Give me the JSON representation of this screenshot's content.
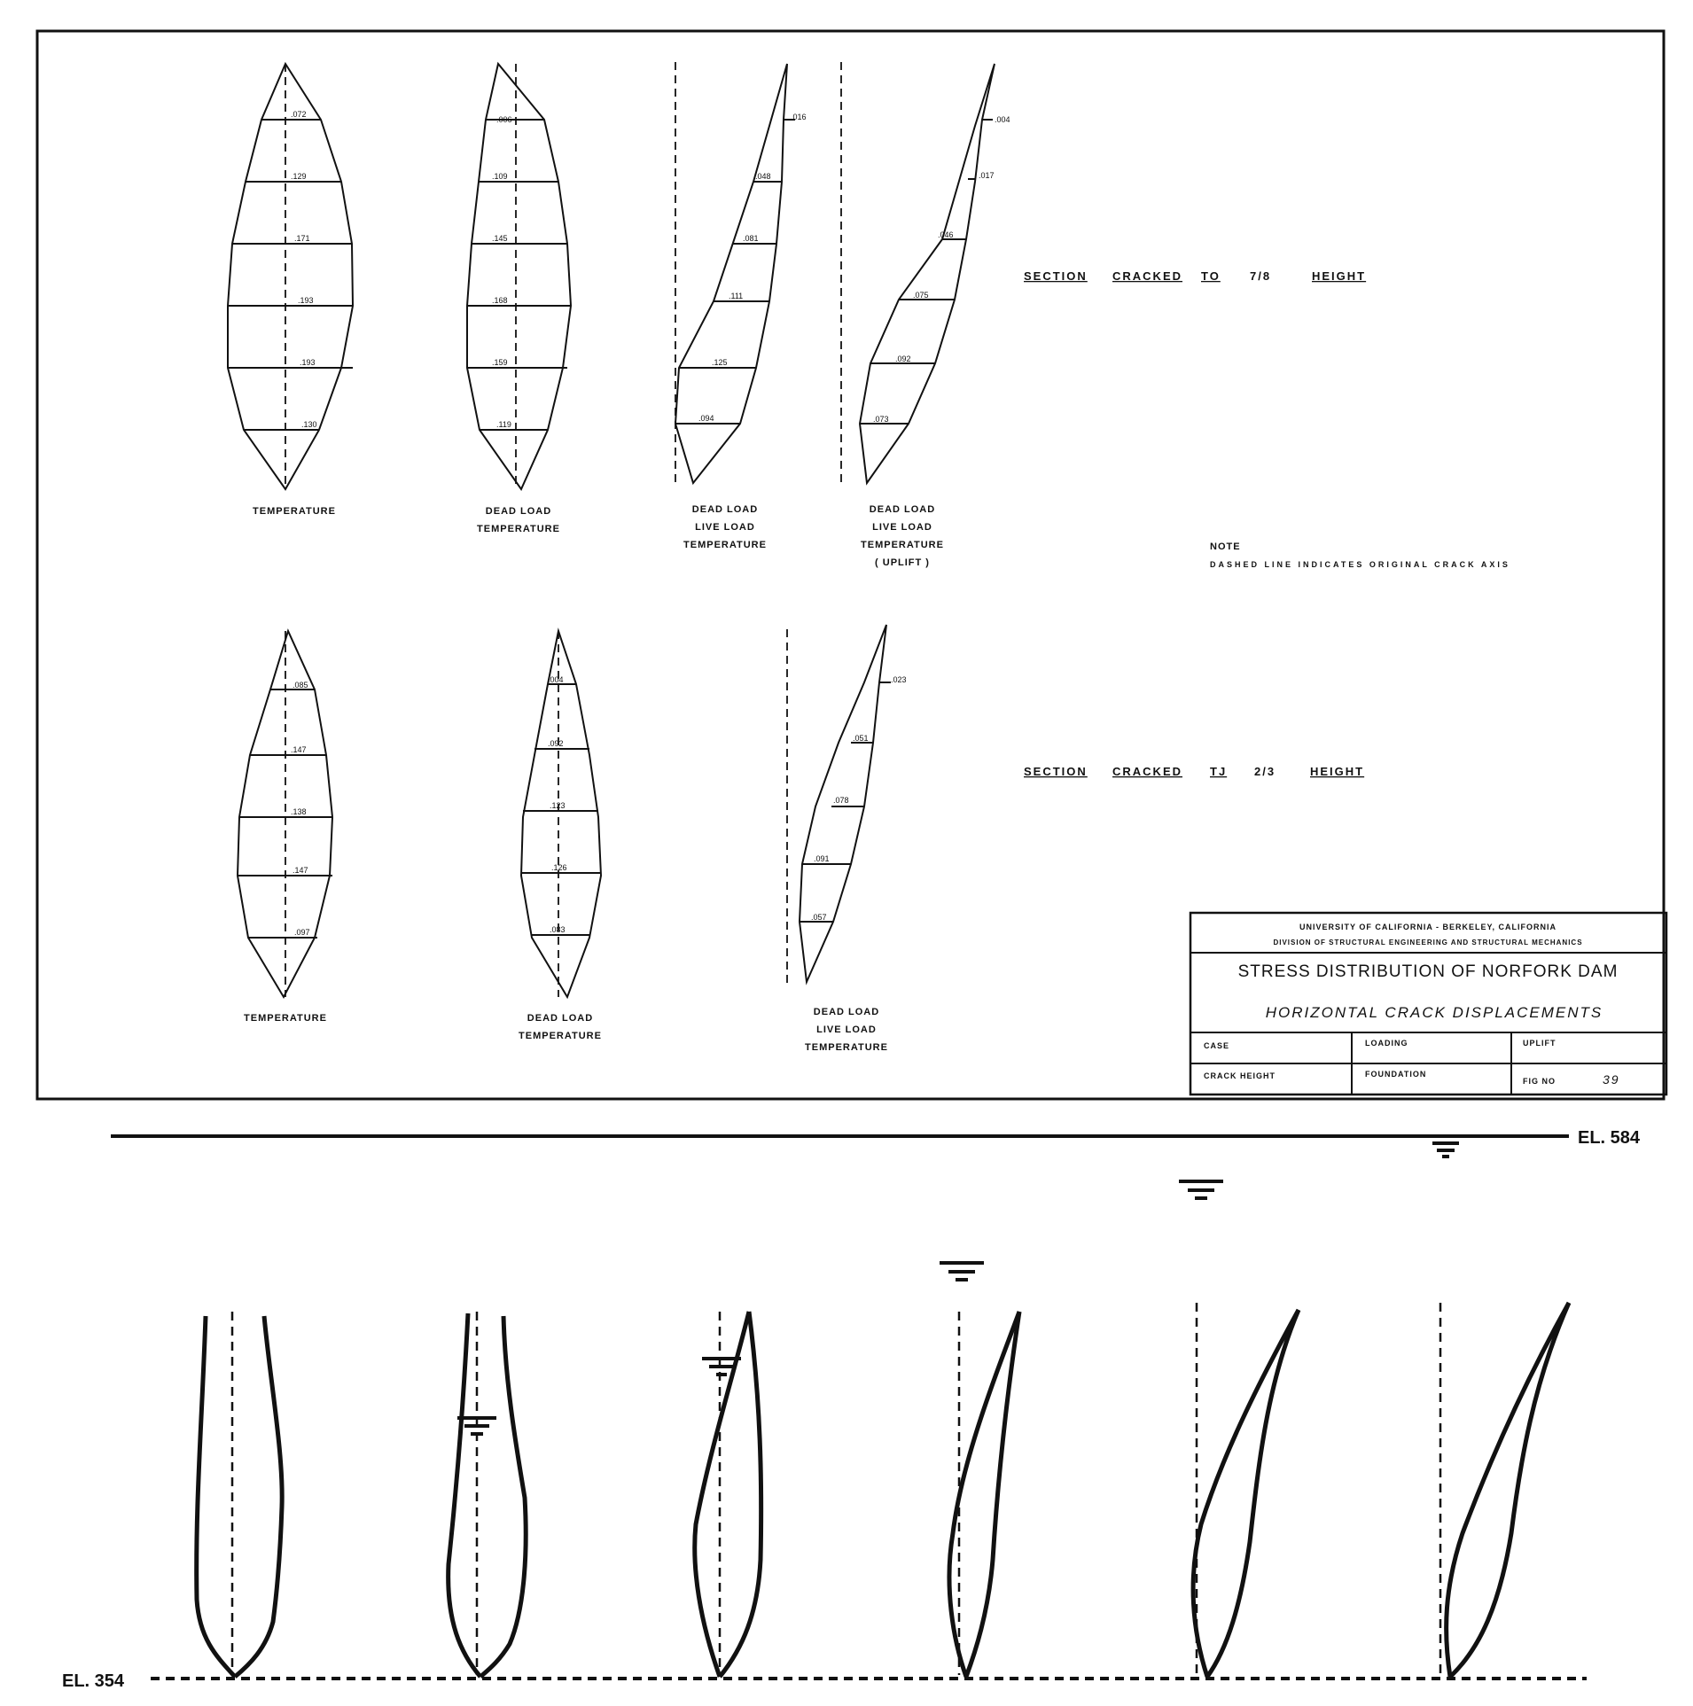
{
  "upper_row": {
    "diagrams": [
      {
        "label_lines": [
          "TEMPERATURE"
        ],
        "values": [
          ".072",
          ".129",
          ".171",
          ".193",
          ".193",
          ".130"
        ]
      },
      {
        "label_lines": [
          "DEAD LOAD",
          "TEMPERATURE"
        ],
        "values": [
          ".006",
          ".109",
          ".145",
          ".168",
          ".159",
          ".119"
        ]
      },
      {
        "label_lines": [
          "DEAD LOAD",
          "LIVE LOAD",
          "TEMPERATURE"
        ],
        "values": [
          ".016",
          ".048",
          ".081",
          ".111",
          ".125",
          ".094"
        ]
      },
      {
        "label_lines": [
          "DEAD LOAD",
          "LIVE LOAD",
          "TEMPERATURE",
          "( UPLIFT )"
        ],
        "values": [
          ".004",
          ".017",
          ".046",
          ".075",
          ".092",
          ".073"
        ]
      }
    ],
    "section_heading": {
      "words": [
        "SECTION",
        "CRACKED",
        "TO"
      ],
      "fraction": "7/8",
      "tail": "HEIGHT"
    }
  },
  "note": {
    "title": "NOTE",
    "text": "DASHED LINE INDICATES ORIGINAL CRACK AXIS"
  },
  "lower_row": {
    "diagrams": [
      {
        "label_lines": [
          "TEMPERATURE"
        ],
        "values": [
          ".085",
          ".147",
          ".138",
          ".147",
          ".097"
        ]
      },
      {
        "label_lines": [
          "DEAD LOAD",
          "TEMPERATURE"
        ],
        "values": [
          ".004",
          ".092",
          ".123",
          ".126",
          ".083"
        ]
      },
      {
        "label_lines": [
          "DEAD LOAD",
          "LIVE LOAD",
          "TEMPERATURE"
        ],
        "values": [
          ".023",
          ".051",
          ".078",
          ".091",
          ".057"
        ]
      }
    ],
    "section_heading": {
      "words": [
        "SECTION",
        "CRACKED",
        "TJ"
      ],
      "fraction": "2/3",
      "tail": "HEIGHT"
    }
  },
  "title_block": {
    "line1": "UNIVERSITY OF CALIFORNIA - BERKELEY, CALIFORNIA",
    "line2": "DIVISION OF STRUCTURAL ENGINEERING AND STRUCTURAL MECHANICS",
    "title": "STRESS DISTRIBUTION OF NORFORK DAM",
    "subtitle": "HORIZONTAL CRACK DISPLACEMENTS",
    "fields": {
      "case": "CASE",
      "loading": "LOADING",
      "uplift": "UPLIFT",
      "crack_height": "CRACK HEIGHT",
      "foundation": "FOUNDATION",
      "fig_no_label": "FIG NO",
      "fig_no": "39"
    }
  },
  "elevations": {
    "top": "EL. 584",
    "bottom": "EL. 354"
  }
}
